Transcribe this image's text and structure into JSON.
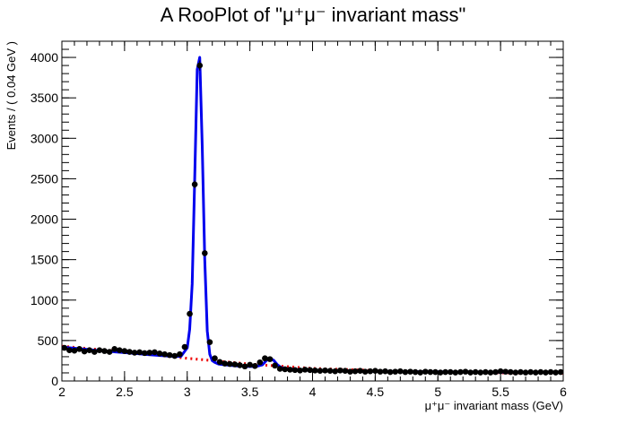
{
  "chart_data": {
    "type": "line",
    "title": "A RooPlot of \"μ⁺μ⁻ invariant mass\"",
    "xlabel": "μ⁺μ⁻ invariant mass (GeV)",
    "ylabel": "Events / ( 0.04 GeV )",
    "xlim": [
      2,
      6
    ],
    "ylim": [
      0,
      4200
    ],
    "grid": false,
    "xticks": [
      "2",
      "2.5",
      "3",
      "3.5",
      "4",
      "4.5",
      "5",
      "5.5",
      "6"
    ],
    "yticks": [
      "0",
      "500",
      "1000",
      "1500",
      "2000",
      "2500",
      "3000",
      "3500",
      "4000"
    ],
    "series": [
      {
        "type": "scatter",
        "color": "#000000",
        "x": [
          2.02,
          2.06,
          2.1,
          2.14,
          2.18,
          2.22,
          2.26,
          2.3,
          2.34,
          2.38,
          2.42,
          2.46,
          2.5,
          2.54,
          2.58,
          2.62,
          2.66,
          2.7,
          2.74,
          2.78,
          2.82,
          2.86,
          2.9,
          2.94,
          2.98,
          3.02,
          3.06,
          3.1,
          3.14,
          3.18,
          3.22,
          3.26,
          3.3,
          3.34,
          3.38,
          3.42,
          3.46,
          3.5,
          3.54,
          3.58,
          3.62,
          3.66,
          3.7,
          3.74,
          3.78,
          3.82,
          3.86,
          3.9,
          3.94,
          3.98,
          4.02,
          4.06,
          4.1,
          4.14,
          4.18,
          4.22,
          4.26,
          4.3,
          4.34,
          4.38,
          4.42,
          4.46,
          4.5,
          4.54,
          4.58,
          4.62,
          4.66,
          4.7,
          4.74,
          4.78,
          4.82,
          4.86,
          4.9,
          4.94,
          4.98,
          5.02,
          5.06,
          5.1,
          5.14,
          5.18,
          5.22,
          5.26,
          5.3,
          5.34,
          5.38,
          5.42,
          5.46,
          5.5,
          5.54,
          5.58,
          5.62,
          5.66,
          5.7,
          5.74,
          5.78,
          5.82,
          5.86,
          5.9,
          5.94,
          5.98
        ],
        "y": [
          410,
          380,
          375,
          395,
          365,
          380,
          360,
          380,
          370,
          360,
          395,
          380,
          370,
          360,
          350,
          355,
          345,
          350,
          355,
          340,
          330,
          320,
          310,
          330,
          420,
          830,
          2430,
          3900,
          1580,
          480,
          280,
          235,
          215,
          210,
          205,
          195,
          180,
          200,
          185,
          230,
          280,
          270,
          190,
          150,
          145,
          140,
          135,
          130,
          140,
          135,
          130,
          125,
          130,
          125,
          120,
          130,
          125,
          115,
          120,
          125,
          115,
          120,
          125,
          115,
          120,
          110,
          115,
          120,
          110,
          115,
          110,
          105,
          115,
          110,
          110,
          105,
          110,
          110,
          105,
          110,
          115,
          105,
          110,
          105,
          110,
          105,
          110,
          120,
          115,
          110,
          105,
          110,
          105,
          110,
          105,
          110,
          105,
          110,
          105,
          110
        ]
      },
      {
        "name": "",
        "type": "line",
        "color": "#0000ee",
        "style": "solid",
        "x": [
          2.0,
          2.1,
          2.2,
          2.3,
          2.4,
          2.5,
          2.6,
          2.7,
          2.8,
          2.9,
          2.95,
          3.0,
          3.02,
          3.04,
          3.06,
          3.08,
          3.1,
          3.12,
          3.14,
          3.16,
          3.18,
          3.2,
          3.22,
          3.25,
          3.3,
          3.4,
          3.5,
          3.55,
          3.6,
          3.63,
          3.66,
          3.69,
          3.72,
          3.75,
          3.8,
          3.9,
          4.0,
          4.2,
          4.4,
          4.6,
          4.8,
          5.0,
          5.2,
          5.4,
          5.6,
          5.8,
          6.0
        ],
        "y": [
          420,
          405,
          390,
          375,
          362,
          350,
          338,
          325,
          312,
          302,
          305,
          410,
          640,
          1200,
          2500,
          3850,
          4000,
          2900,
          1500,
          620,
          330,
          250,
          230,
          210,
          200,
          185,
          178,
          180,
          200,
          250,
          280,
          255,
          200,
          165,
          150,
          138,
          130,
          125,
          120,
          118,
          115,
          113,
          111,
          110,
          108,
          106,
          105
        ]
      },
      {
        "name": "",
        "type": "line",
        "color": "#ee0000",
        "style": "dotted",
        "x": [
          2.0,
          2.5,
          3.0,
          3.5,
          4.0,
          4.5,
          5.0,
          5.5,
          6.0
        ],
        "y": [
          430,
          360,
          280,
          210,
          155,
          130,
          110,
          100,
          95
        ]
      }
    ]
  }
}
